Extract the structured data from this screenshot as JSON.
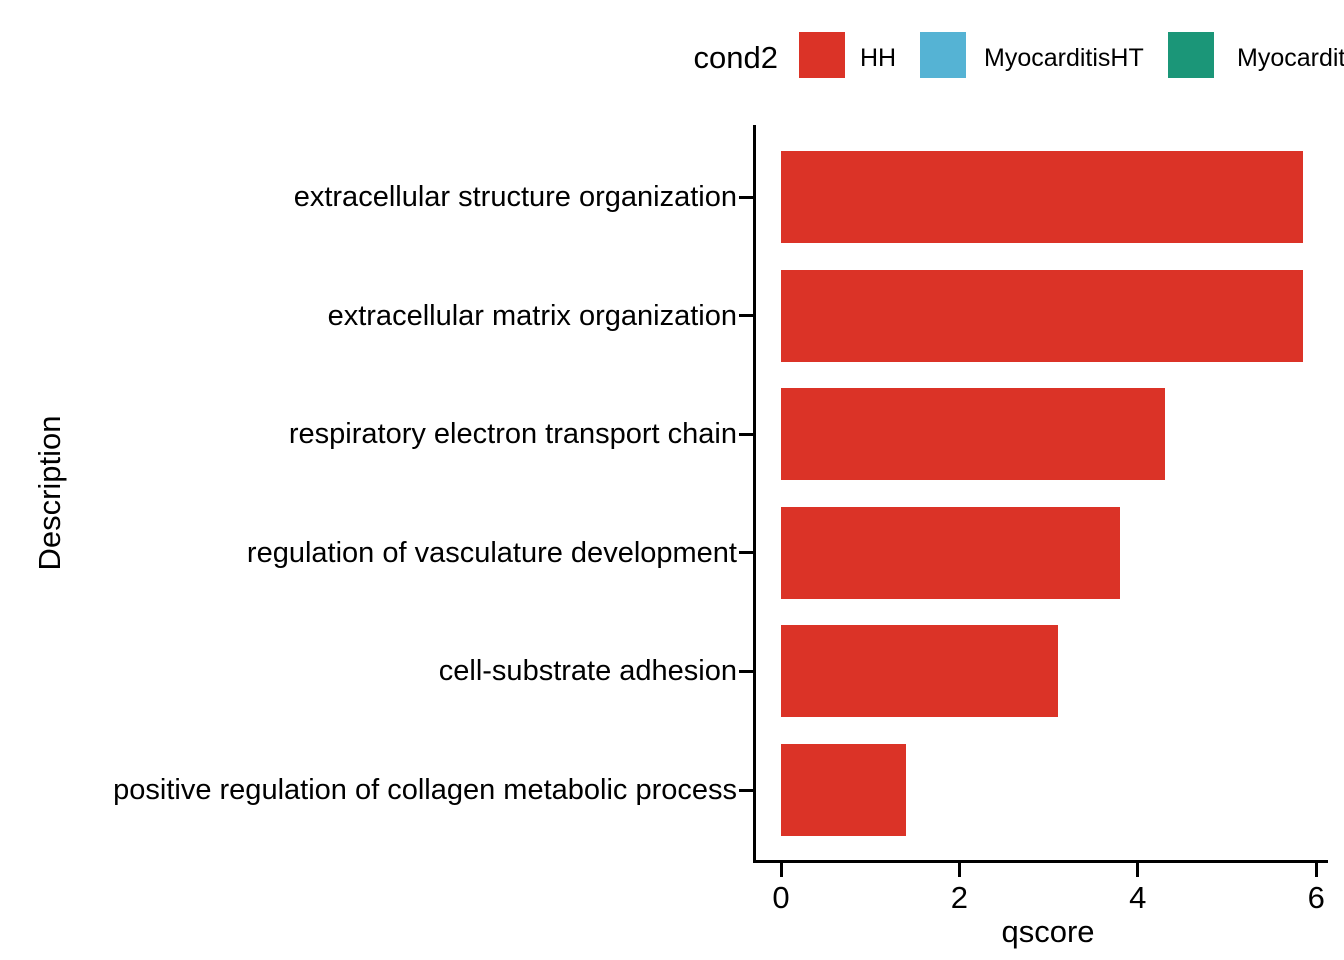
{
  "legend": {
    "title": "cond2",
    "items": [
      {
        "label": "HH",
        "color": "#DB3327"
      },
      {
        "label": "MyocarditisHT",
        "color": "#55B3D4"
      },
      {
        "label": "Myocarditis",
        "color": "#1B9678",
        "truncated_at_edge": true
      }
    ]
  },
  "chart_data": {
    "type": "bar",
    "orientation": "horizontal",
    "xlabel": "qscore",
    "ylabel": "Description",
    "xlim": [
      0,
      6
    ],
    "x_ticks": [
      "0",
      "2",
      "4",
      "6"
    ],
    "x_tick_values": [
      0,
      2,
      4,
      6
    ],
    "grid": false,
    "legend_position": "top",
    "series_name": "HH",
    "bar_color": "#DB3327",
    "categories": [
      "extracellular structure organization",
      "extracellular matrix organization",
      "respiratory electron transport chain",
      "regulation of vasculature development",
      "cell-substrate adhesion",
      "positive regulation of collagen metabolic process"
    ],
    "values": [
      5.85,
      5.85,
      4.3,
      3.8,
      3.1,
      1.4
    ]
  }
}
